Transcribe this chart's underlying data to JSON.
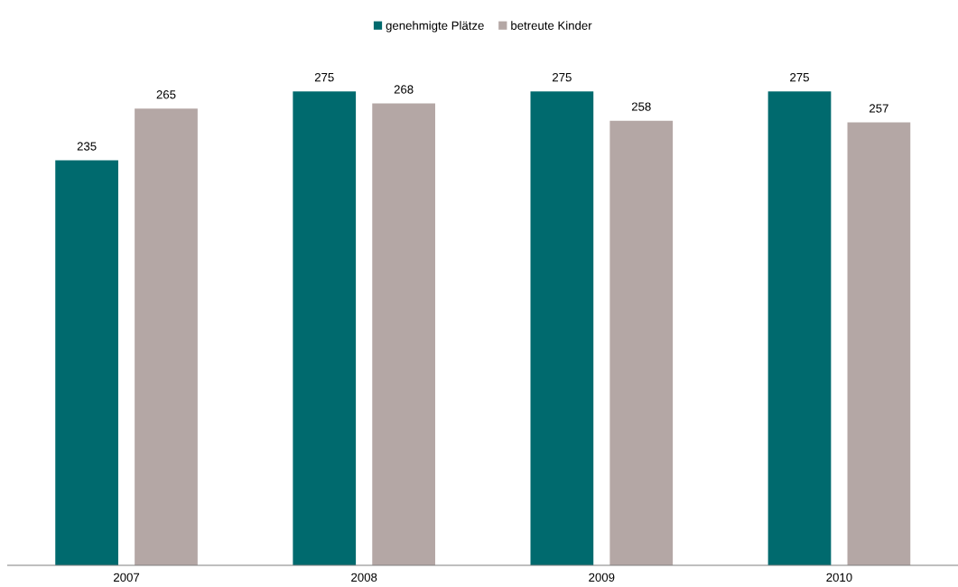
{
  "chart_data": {
    "type": "bar",
    "categories": [
      "2007",
      "2008",
      "2009",
      "2010"
    ],
    "series": [
      {
        "name": "genehmigte Plätze",
        "color": "#006a6e",
        "values": [
          235,
          275,
          275,
          275
        ]
      },
      {
        "name": "betreute Kinder",
        "color": "#b4a7a5",
        "values": [
          265,
          268,
          258,
          257
        ]
      }
    ],
    "data_labels": true,
    "legend": "top",
    "grid": false
  }
}
